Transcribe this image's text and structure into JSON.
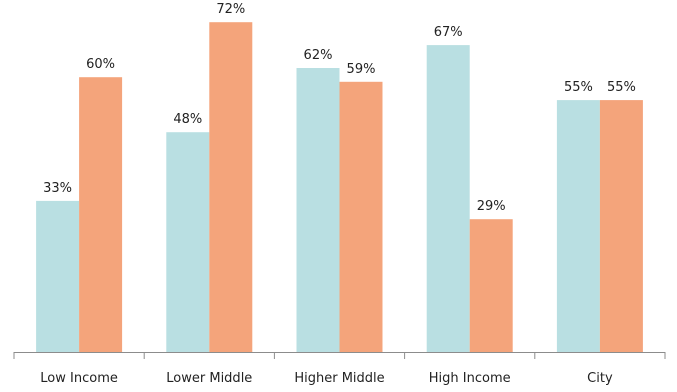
{
  "chart_data": {
    "type": "bar",
    "title": "",
    "xlabel": "",
    "ylabel": "",
    "categories": [
      "Low Income",
      "Lower Middle",
      "Higher Middle",
      "High Income",
      "City"
    ],
    "series": [
      {
        "values": [
          33,
          48,
          62,
          67,
          55
        ],
        "labels": [
          "33%",
          "48%",
          "62%",
          "67%",
          "55%"
        ],
        "color": "#B9DFE2"
      },
      {
        "values": [
          60,
          72,
          59,
          29,
          55
        ],
        "labels": [
          "60%",
          "72%",
          "59%",
          "29%",
          "55%"
        ],
        "color": "#F4A47B"
      }
    ],
    "ylim": [
      0,
      100
    ],
    "grid": false,
    "legend": "none",
    "axis_color": "#8C8C8C"
  }
}
